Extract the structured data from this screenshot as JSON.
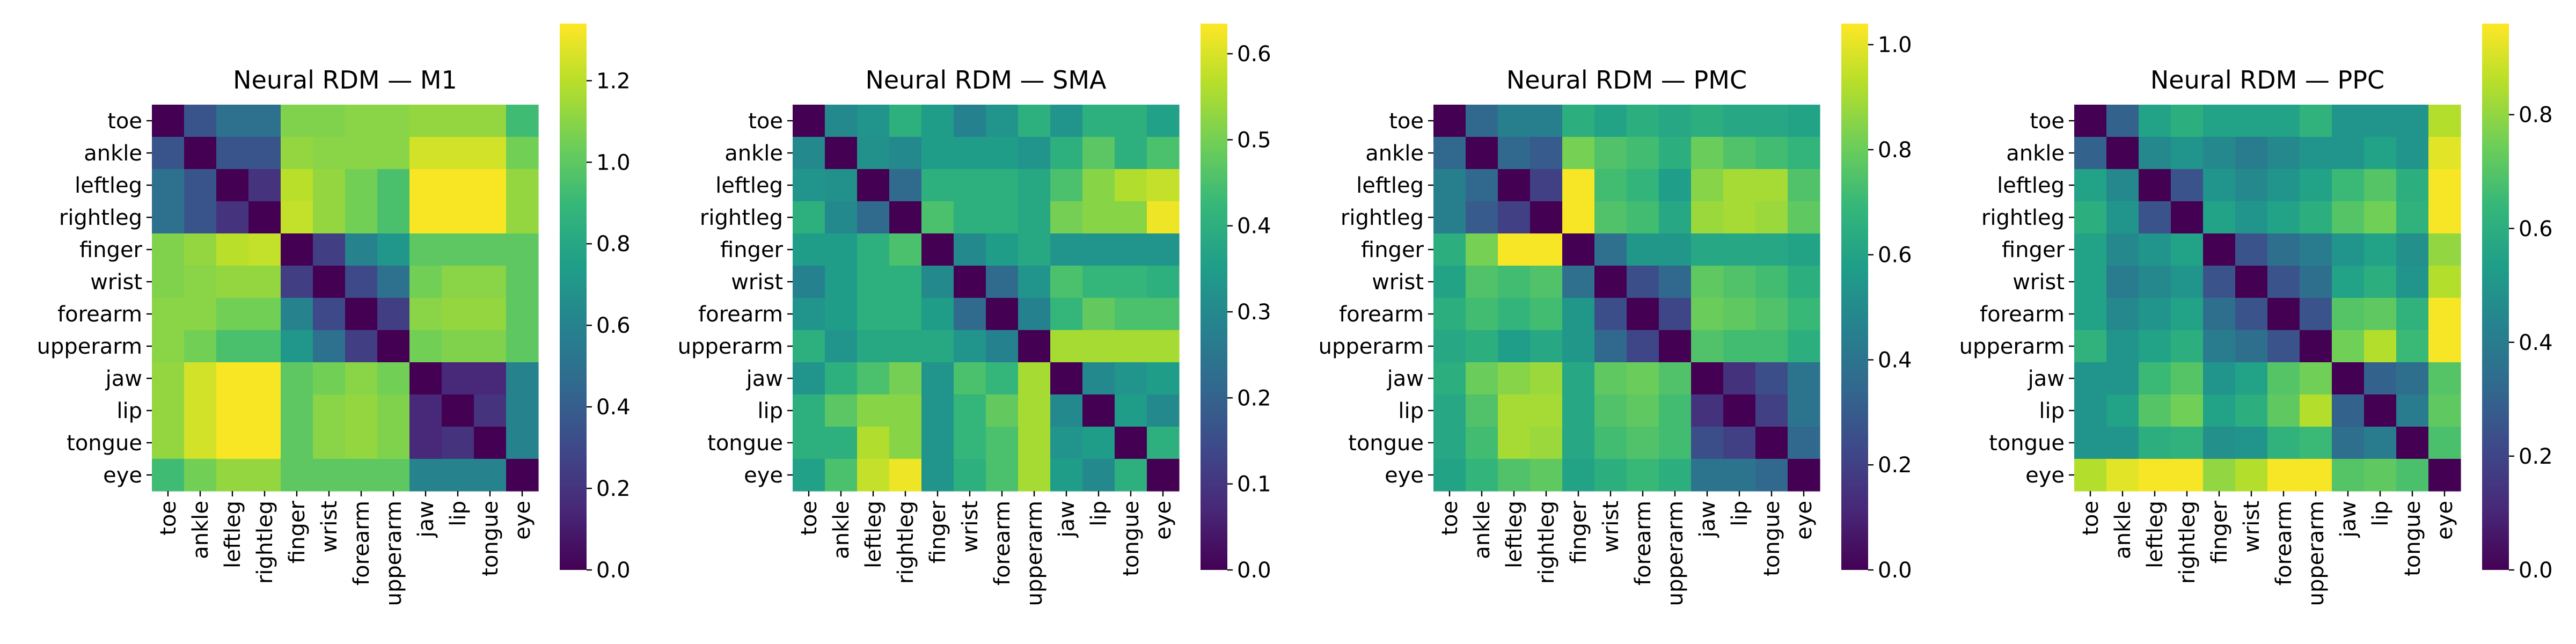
{
  "chart_data": [
    {
      "type": "heatmap",
      "title": "Neural RDM — M1",
      "labels": [
        "toe",
        "ankle",
        "leftleg",
        "rightleg",
        "finger",
        "wrist",
        "forearm",
        "upperarm",
        "jaw",
        "lip",
        "tongue",
        "eye"
      ],
      "colorbar": {
        "vmin": 0.0,
        "vmax": 1.34,
        "ticks": [
          0.0,
          0.2,
          0.4,
          0.6,
          0.8,
          1.0,
          1.2
        ]
      },
      "matrix": [
        [
          0.0,
          0.35,
          0.5,
          0.5,
          1.08,
          1.08,
          1.1,
          1.1,
          1.12,
          1.12,
          1.12,
          0.92
        ],
        [
          0.35,
          0.0,
          0.35,
          0.35,
          1.12,
          1.1,
          1.1,
          1.1,
          1.25,
          1.25,
          1.25,
          1.05
        ],
        [
          0.5,
          0.35,
          0.0,
          0.2,
          1.2,
          1.12,
          1.05,
          0.95,
          1.33,
          1.33,
          1.33,
          1.12
        ],
        [
          0.5,
          0.35,
          0.2,
          0.0,
          1.22,
          1.12,
          1.05,
          0.95,
          1.33,
          1.33,
          1.33,
          1.12
        ],
        [
          1.08,
          1.12,
          1.2,
          1.22,
          0.0,
          0.25,
          0.6,
          0.7,
          1.0,
          1.0,
          1.0,
          1.0
        ],
        [
          1.08,
          1.1,
          1.12,
          1.12,
          0.25,
          0.0,
          0.3,
          0.5,
          1.05,
          1.1,
          1.1,
          1.0
        ],
        [
          1.1,
          1.1,
          1.05,
          1.05,
          0.6,
          0.3,
          0.0,
          0.25,
          1.1,
          1.12,
          1.12,
          1.0
        ],
        [
          1.1,
          1.05,
          0.95,
          0.95,
          0.7,
          0.5,
          0.25,
          0.0,
          1.05,
          1.08,
          1.08,
          1.0
        ],
        [
          1.12,
          1.25,
          1.33,
          1.33,
          1.0,
          1.05,
          1.1,
          1.05,
          0.0,
          0.15,
          0.15,
          0.6
        ],
        [
          1.12,
          1.25,
          1.33,
          1.33,
          1.0,
          1.1,
          1.12,
          1.08,
          0.15,
          0.0,
          0.2,
          0.6
        ],
        [
          1.12,
          1.25,
          1.33,
          1.33,
          1.0,
          1.1,
          1.12,
          1.08,
          0.15,
          0.2,
          0.0,
          0.6
        ],
        [
          0.92,
          1.05,
          1.12,
          1.12,
          1.0,
          1.0,
          1.0,
          1.0,
          0.6,
          0.6,
          0.6,
          0.0
        ]
      ]
    },
    {
      "type": "heatmap",
      "title": "Neural RDM — SMA",
      "labels": [
        "toe",
        "ankle",
        "leftleg",
        "rightleg",
        "finger",
        "wrist",
        "forearm",
        "upperarm",
        "jaw",
        "lip",
        "tongue",
        "eye"
      ],
      "colorbar": {
        "vmin": 0.0,
        "vmax": 0.635,
        "ticks": [
          0.0,
          0.1,
          0.2,
          0.3,
          0.4,
          0.5,
          0.6
        ]
      },
      "matrix": [
        [
          0.0,
          0.3,
          0.33,
          0.4,
          0.35,
          0.28,
          0.33,
          0.4,
          0.33,
          0.4,
          0.4,
          0.36
        ],
        [
          0.3,
          0.0,
          0.32,
          0.3,
          0.35,
          0.35,
          0.35,
          0.33,
          0.4,
          0.47,
          0.4,
          0.45
        ],
        [
          0.33,
          0.32,
          0.0,
          0.22,
          0.4,
          0.4,
          0.4,
          0.38,
          0.45,
          0.52,
          0.56,
          0.58
        ],
        [
          0.4,
          0.3,
          0.22,
          0.0,
          0.45,
          0.4,
          0.4,
          0.38,
          0.5,
          0.52,
          0.52,
          0.62
        ],
        [
          0.35,
          0.35,
          0.4,
          0.45,
          0.0,
          0.3,
          0.35,
          0.38,
          0.33,
          0.33,
          0.33,
          0.33
        ],
        [
          0.28,
          0.35,
          0.4,
          0.4,
          0.3,
          0.0,
          0.22,
          0.33,
          0.45,
          0.42,
          0.42,
          0.4
        ],
        [
          0.33,
          0.35,
          0.4,
          0.4,
          0.35,
          0.22,
          0.0,
          0.28,
          0.42,
          0.48,
          0.45,
          0.45
        ],
        [
          0.4,
          0.33,
          0.38,
          0.38,
          0.38,
          0.33,
          0.28,
          0.0,
          0.55,
          0.55,
          0.55,
          0.55
        ],
        [
          0.33,
          0.4,
          0.45,
          0.5,
          0.33,
          0.45,
          0.42,
          0.55,
          0.0,
          0.3,
          0.33,
          0.35
        ],
        [
          0.4,
          0.47,
          0.52,
          0.52,
          0.33,
          0.42,
          0.48,
          0.55,
          0.3,
          0.0,
          0.35,
          0.3
        ],
        [
          0.4,
          0.4,
          0.56,
          0.52,
          0.33,
          0.42,
          0.45,
          0.55,
          0.33,
          0.35,
          0.0,
          0.4
        ],
        [
          0.36,
          0.45,
          0.58,
          0.62,
          0.33,
          0.4,
          0.45,
          0.55,
          0.35,
          0.3,
          0.4,
          0.0
        ]
      ]
    },
    {
      "type": "heatmap",
      "title": "Neural RDM — PMC",
      "labels": [
        "toe",
        "ankle",
        "leftleg",
        "rightleg",
        "finger",
        "wrist",
        "forearm",
        "upperarm",
        "jaw",
        "lip",
        "tongue",
        "eye"
      ],
      "colorbar": {
        "vmin": 0.0,
        "vmax": 1.04,
        "ticks": [
          0.0,
          0.2,
          0.4,
          0.6,
          0.8,
          1.0
        ]
      },
      "matrix": [
        [
          0.0,
          0.35,
          0.45,
          0.45,
          0.65,
          0.6,
          0.65,
          0.62,
          0.65,
          0.62,
          0.62,
          0.6
        ],
        [
          0.35,
          0.0,
          0.35,
          0.3,
          0.82,
          0.75,
          0.72,
          0.65,
          0.8,
          0.75,
          0.72,
          0.68
        ],
        [
          0.45,
          0.35,
          0.0,
          0.2,
          1.03,
          0.72,
          0.68,
          0.58,
          0.85,
          0.9,
          0.9,
          0.75
        ],
        [
          0.45,
          0.3,
          0.2,
          0.0,
          1.03,
          0.75,
          0.72,
          0.62,
          0.88,
          0.9,
          0.88,
          0.78
        ],
        [
          0.65,
          0.82,
          1.03,
          1.03,
          0.0,
          0.38,
          0.55,
          0.55,
          0.62,
          0.62,
          0.62,
          0.6
        ],
        [
          0.6,
          0.75,
          0.72,
          0.75,
          0.38,
          0.0,
          0.25,
          0.35,
          0.78,
          0.75,
          0.72,
          0.65
        ],
        [
          0.65,
          0.72,
          0.68,
          0.72,
          0.55,
          0.25,
          0.0,
          0.22,
          0.8,
          0.78,
          0.75,
          0.7
        ],
        [
          0.62,
          0.65,
          0.58,
          0.62,
          0.55,
          0.35,
          0.22,
          0.0,
          0.75,
          0.72,
          0.72,
          0.65
        ],
        [
          0.65,
          0.8,
          0.85,
          0.88,
          0.62,
          0.78,
          0.8,
          0.75,
          0.0,
          0.15,
          0.25,
          0.4
        ],
        [
          0.62,
          0.75,
          0.9,
          0.9,
          0.62,
          0.75,
          0.78,
          0.72,
          0.15,
          0.0,
          0.2,
          0.4
        ],
        [
          0.62,
          0.72,
          0.9,
          0.88,
          0.62,
          0.72,
          0.75,
          0.72,
          0.25,
          0.2,
          0.0,
          0.35
        ],
        [
          0.6,
          0.68,
          0.75,
          0.78,
          0.6,
          0.65,
          0.7,
          0.65,
          0.4,
          0.4,
          0.35,
          0.0
        ]
      ]
    },
    {
      "type": "heatmap",
      "title": "Neural RDM — PPC",
      "labels": [
        "toe",
        "ankle",
        "leftleg",
        "rightleg",
        "finger",
        "wrist",
        "forearm",
        "upperarm",
        "jaw",
        "lip",
        "tongue",
        "eye"
      ],
      "colorbar": {
        "vmin": 0.0,
        "vmax": 0.96,
        "ticks": [
          0.0,
          0.2,
          0.4,
          0.6,
          0.8
        ]
      },
      "matrix": [
        [
          0.0,
          0.3,
          0.55,
          0.6,
          0.55,
          0.55,
          0.55,
          0.62,
          0.5,
          0.5,
          0.5,
          0.85
        ],
        [
          0.3,
          0.0,
          0.45,
          0.5,
          0.45,
          0.4,
          0.45,
          0.5,
          0.5,
          0.55,
          0.5,
          0.92
        ],
        [
          0.55,
          0.45,
          0.0,
          0.25,
          0.5,
          0.45,
          0.5,
          0.55,
          0.65,
          0.7,
          0.6,
          0.95
        ],
        [
          0.6,
          0.5,
          0.25,
          0.0,
          0.55,
          0.5,
          0.55,
          0.6,
          0.7,
          0.75,
          0.62,
          0.95
        ],
        [
          0.55,
          0.45,
          0.5,
          0.55,
          0.0,
          0.25,
          0.35,
          0.4,
          0.5,
          0.55,
          0.48,
          0.8
        ],
        [
          0.55,
          0.4,
          0.45,
          0.5,
          0.25,
          0.0,
          0.25,
          0.35,
          0.55,
          0.6,
          0.5,
          0.85
        ],
        [
          0.55,
          0.45,
          0.5,
          0.55,
          0.35,
          0.25,
          0.0,
          0.25,
          0.7,
          0.72,
          0.62,
          0.95
        ],
        [
          0.62,
          0.5,
          0.55,
          0.6,
          0.4,
          0.35,
          0.25,
          0.0,
          0.75,
          0.85,
          0.65,
          0.95
        ],
        [
          0.5,
          0.5,
          0.65,
          0.7,
          0.5,
          0.55,
          0.7,
          0.75,
          0.0,
          0.3,
          0.35,
          0.7
        ],
        [
          0.5,
          0.55,
          0.7,
          0.75,
          0.55,
          0.6,
          0.72,
          0.85,
          0.3,
          0.0,
          0.4,
          0.72
        ],
        [
          0.5,
          0.5,
          0.6,
          0.62,
          0.48,
          0.5,
          0.62,
          0.65,
          0.35,
          0.4,
          0.0,
          0.68
        ],
        [
          0.85,
          0.92,
          0.95,
          0.95,
          0.8,
          0.85,
          0.95,
          0.95,
          0.7,
          0.72,
          0.68,
          0.0
        ]
      ]
    }
  ],
  "colors": {
    "colormap": "viridis",
    "stops": [
      "#440154",
      "#482878",
      "#3e4989",
      "#31688e",
      "#26828e",
      "#1f9e89",
      "#35b779",
      "#6ece58",
      "#b5de2b",
      "#fde725"
    ]
  }
}
